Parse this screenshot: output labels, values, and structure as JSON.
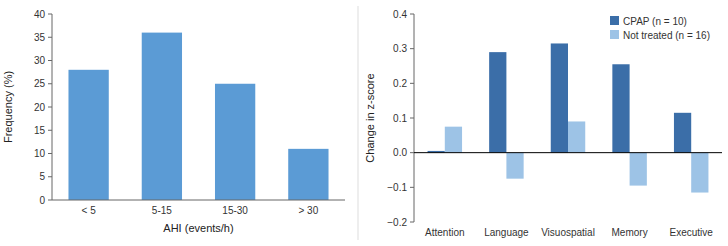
{
  "chart_data": [
    {
      "type": "bar",
      "categories": [
        "< 5",
        "5-15",
        "15-30",
        "> 30"
      ],
      "values": [
        28,
        36,
        25,
        11
      ],
      "color": "#5B9BD5",
      "xlabel": "AHI (events/h)",
      "ylabel": "Frequency (%)",
      "ylim": [
        0,
        40
      ],
      "yticks": [
        0,
        5,
        10,
        15,
        20,
        25,
        30,
        35,
        40
      ],
      "grid": false
    },
    {
      "type": "bar",
      "categories": [
        "Attention",
        "Language",
        "Visuospatial",
        "Memory",
        "Executive"
      ],
      "series": [
        {
          "name": "CPAP (n = 10)",
          "color": "#3B6EA8",
          "values": [
            0.005,
            0.29,
            0.315,
            0.255,
            0.115
          ]
        },
        {
          "name": "Not treated (n = 16)",
          "color": "#9DC3E6",
          "values": [
            0.075,
            -0.075,
            0.09,
            -0.095,
            -0.115
          ]
        }
      ],
      "ylabel": "Change in z-score",
      "ylim": [
        -0.2,
        0.4
      ],
      "yticks": [
        {
          "value": -0.2,
          "label": "−0.2"
        },
        {
          "value": -0.1,
          "label": "−0.1"
        },
        {
          "value": 0.0,
          "label": "0.0"
        },
        0.1,
        0.2,
        0.3,
        0.4
      ],
      "legend": "upper right",
      "grid": false
    }
  ]
}
